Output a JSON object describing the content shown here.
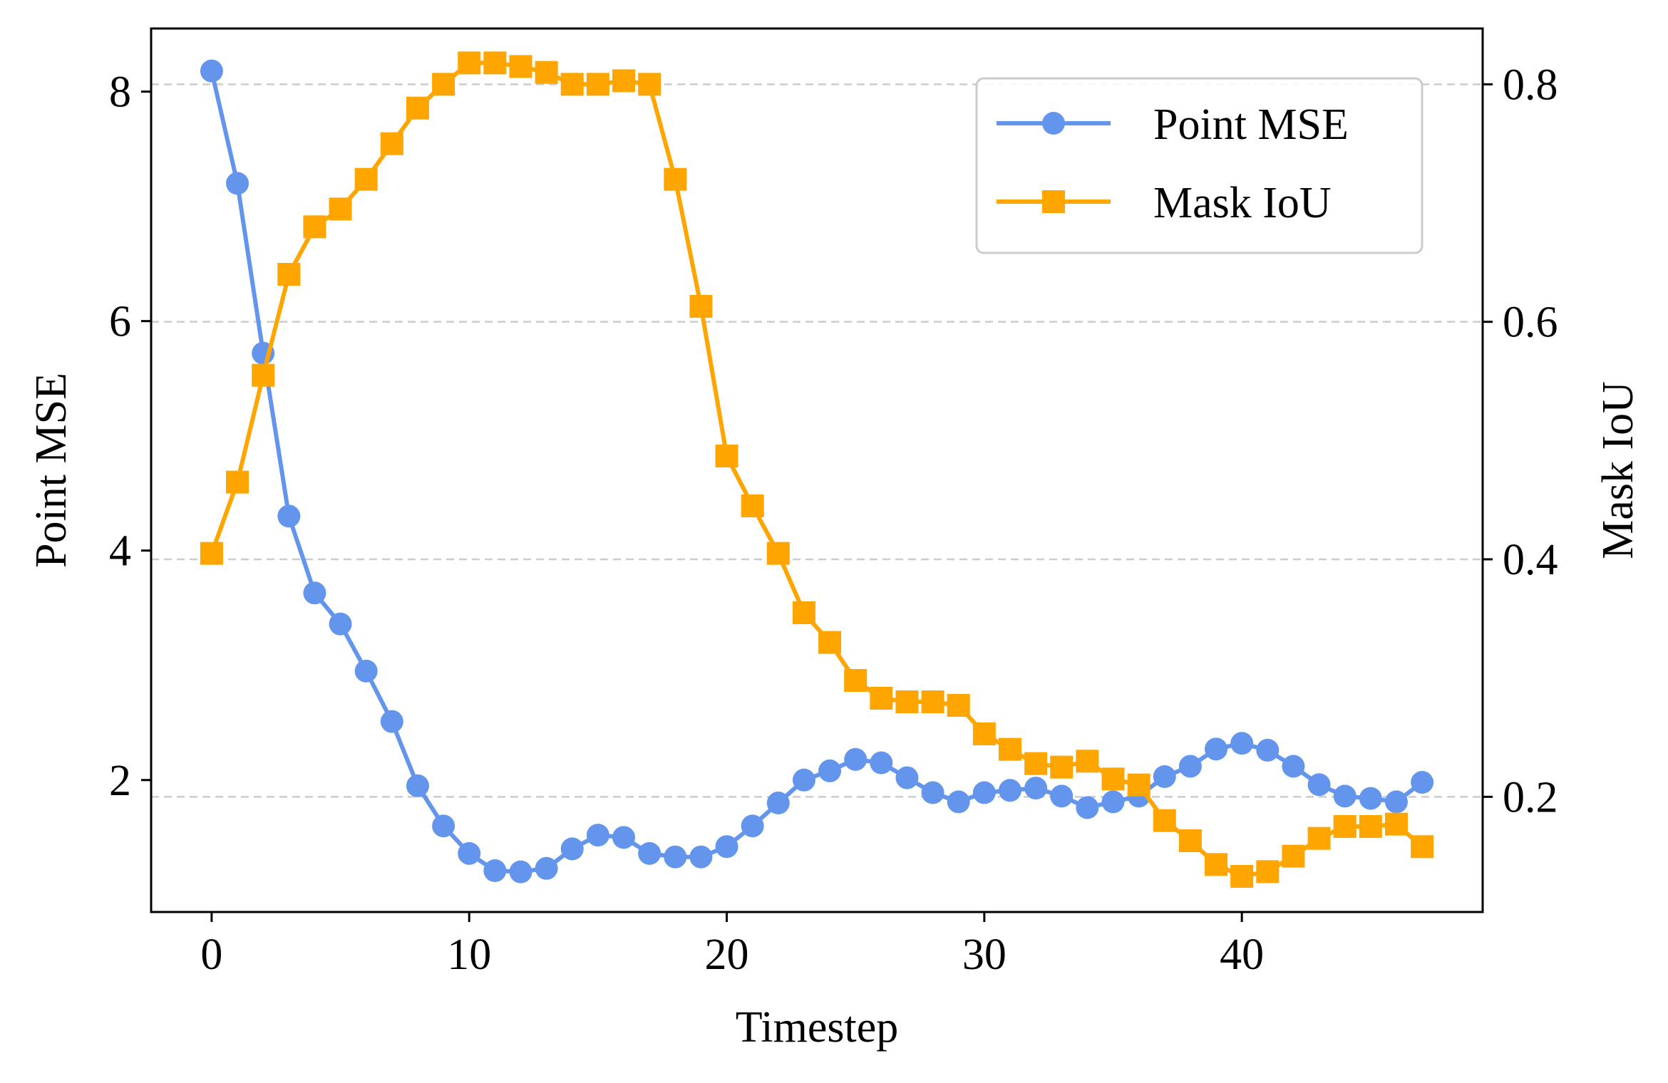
{
  "chart_data": {
    "type": "line",
    "title": "",
    "xlabel": "Timestep",
    "ylabel_left": "Point MSE",
    "ylabel_right": "Mask IoU",
    "xlim": [
      -2.35,
      49.35
    ],
    "ylim_left": [
      0.85,
      8.55
    ],
    "ylim_right": [
      0.103,
      0.847
    ],
    "xticks": [
      0,
      10,
      20,
      30,
      40
    ],
    "xtick_labels": [
      "0",
      "10",
      "20",
      "30",
      "40"
    ],
    "yticks_left": [
      2,
      4,
      6,
      8
    ],
    "ytick_labels_left": [
      "2",
      "4",
      "6",
      "8"
    ],
    "yticks_right": [
      0.2,
      0.4,
      0.6,
      0.8
    ],
    "ytick_labels_right": [
      "0.2",
      "0.4",
      "0.6",
      "0.8"
    ],
    "grid": "horizontal dashed at right-axis ticks",
    "legend_position": "top-right",
    "x": [
      0,
      1,
      2,
      3,
      4,
      5,
      6,
      7,
      8,
      9,
      10,
      11,
      12,
      13,
      14,
      15,
      16,
      17,
      18,
      19,
      20,
      21,
      22,
      23,
      24,
      25,
      26,
      27,
      28,
      29,
      30,
      31,
      32,
      33,
      34,
      35,
      36,
      37,
      38,
      39,
      40,
      41,
      42,
      43,
      44,
      45,
      46,
      47
    ],
    "series": [
      {
        "name": "Point MSE",
        "axis": "left",
        "color": "#6495ED",
        "marker": "circle",
        "values": [
          8.18,
          7.2,
          5.72,
          4.3,
          3.63,
          3.36,
          2.95,
          2.51,
          1.95,
          1.6,
          1.36,
          1.21,
          1.2,
          1.23,
          1.4,
          1.52,
          1.5,
          1.36,
          1.33,
          1.33,
          1.42,
          1.6,
          1.8,
          2.0,
          2.08,
          2.18,
          2.15,
          2.02,
          1.89,
          1.81,
          1.89,
          1.91,
          1.93,
          1.86,
          1.76,
          1.81,
          1.86,
          2.03,
          2.12,
          2.27,
          2.32,
          2.26,
          2.12,
          1.96,
          1.86,
          1.84,
          1.81,
          1.98
        ]
      },
      {
        "name": "Mask IoU",
        "axis": "right",
        "color": "#FFA500",
        "marker": "square",
        "values": [
          0.405,
          0.465,
          0.555,
          0.64,
          0.68,
          0.695,
          0.72,
          0.75,
          0.78,
          0.8,
          0.818,
          0.818,
          0.815,
          0.81,
          0.8,
          0.8,
          0.803,
          0.8,
          0.72,
          0.613,
          0.487,
          0.445,
          0.405,
          0.355,
          0.33,
          0.298,
          0.283,
          0.28,
          0.28,
          0.277,
          0.253,
          0.24,
          0.228,
          0.225,
          0.23,
          0.215,
          0.21,
          0.18,
          0.163,
          0.143,
          0.133,
          0.137,
          0.15,
          0.165,
          0.175,
          0.175,
          0.177,
          0.158
        ]
      }
    ]
  }
}
